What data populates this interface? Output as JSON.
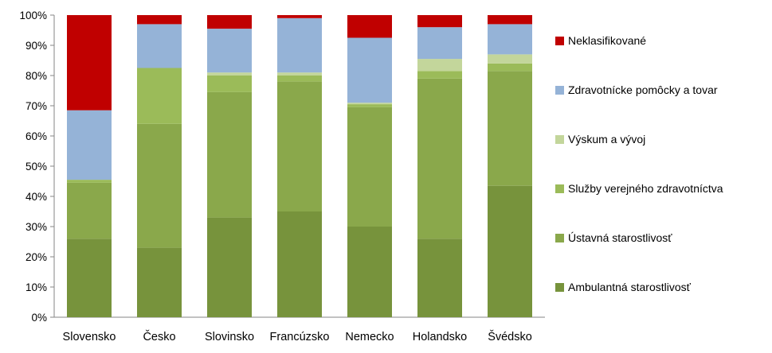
{
  "chart_data": {
    "type": "bar",
    "stacked": true,
    "percent": true,
    "categories": [
      "Slovensko",
      "Česko",
      "Slovinsko",
      "Francúzsko",
      "Nemecko",
      "Holandsko",
      "Švédsko"
    ],
    "series": [
      {
        "name": "Ambulantná starostlivosť",
        "color": "#77933C",
        "values": [
          26,
          23,
          33,
          35,
          30,
          26,
          43.5
        ]
      },
      {
        "name": "Ústavná starostlivosť",
        "color": "#8AA84B",
        "values": [
          18.5,
          41,
          41.5,
          43,
          39.5,
          53,
          38
        ]
      },
      {
        "name": "Služby verejného zdravotníctva",
        "color": "#9BBB59",
        "values": [
          1,
          18.5,
          5.5,
          2,
          1,
          2.5,
          2.5
        ]
      },
      {
        "name": "Výskum a vývoj",
        "color": "#C3D69B",
        "values": [
          0,
          0,
          1,
          1,
          0.5,
          4,
          3
        ]
      },
      {
        "name": "Zdravotnícke pomôcky a tovar",
        "color": "#95B3D7",
        "values": [
          23,
          14.5,
          14.5,
          18,
          21.5,
          10.5,
          10
        ]
      },
      {
        "name": "Neklasifikované",
        "color": "#C00000",
        "values": [
          31.5,
          3,
          4.5,
          1,
          7.5,
          4,
          3
        ]
      }
    ],
    "y_ticks": [
      "0%",
      "10%",
      "20%",
      "30%",
      "40%",
      "50%",
      "60%",
      "70%",
      "80%",
      "90%",
      "100%"
    ],
    "ylim": [
      0,
      100
    ],
    "grid": false,
    "legend_position": "right"
  }
}
